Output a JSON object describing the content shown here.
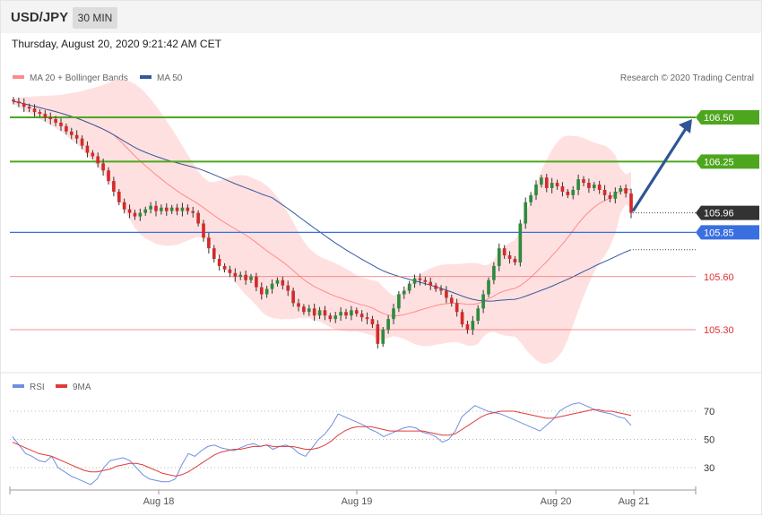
{
  "header": {
    "symbol": "USD/JPY",
    "timeframe": "30 MIN"
  },
  "datetime": "Thursday, August 20, 2020 9:21:42 AM CET",
  "source": "Research © 2020 Trading Central",
  "colors": {
    "bull": "#2e8b3e",
    "bear": "#d42a2a",
    "band": "#ffd6d6",
    "ma20": "#ff8a8a",
    "ma50": "#34589c",
    "resistance": "#4ea61e",
    "pivot": "#3a6fe0",
    "support": "#f06b6b",
    "last": "#333333",
    "arrow": "#2f5597",
    "rsi": "#6f8fe0",
    "rsi_ma": "#e13a3a"
  },
  "chart_data": [
    {
      "type": "candlestick",
      "title": "",
      "legend": [
        {
          "name": "MA 20 + Bollinger Bands",
          "color": "#ff8a8a"
        },
        {
          "name": "MA 50",
          "color": "#34589c"
        }
      ],
      "ylim": [
        105.13,
        106.54
      ],
      "x_ticks": [
        "Aug 18",
        "Aug 19",
        "Aug 20",
        "Aug 21"
      ],
      "closes": [
        106.59,
        106.58,
        106.56,
        106.55,
        106.53,
        106.52,
        106.5,
        106.49,
        106.47,
        106.45,
        106.42,
        106.4,
        106.38,
        106.34,
        106.3,
        106.28,
        106.24,
        106.2,
        106.14,
        106.08,
        106.02,
        105.98,
        105.96,
        105.94,
        105.96,
        105.98,
        106.0,
        105.97,
        105.99,
        105.97,
        105.99,
        105.97,
        105.99,
        105.97,
        105.96,
        105.9,
        105.82,
        105.76,
        105.7,
        105.66,
        105.64,
        105.62,
        105.6,
        105.61,
        105.58,
        105.6,
        105.54,
        105.5,
        105.53,
        105.56,
        105.58,
        105.55,
        105.52,
        105.45,
        105.43,
        105.4,
        105.42,
        105.38,
        105.41,
        105.38,
        105.36,
        105.38,
        105.4,
        105.38,
        105.41,
        105.39,
        105.37,
        105.36,
        105.33,
        105.22,
        105.3,
        105.36,
        105.42,
        105.5,
        105.52,
        105.56,
        105.59,
        105.58,
        105.57,
        105.55,
        105.53,
        105.52,
        105.48,
        105.45,
        105.4,
        105.33,
        105.3,
        105.35,
        105.42,
        105.5,
        105.58,
        105.66,
        105.76,
        105.72,
        105.7,
        105.68,
        105.9,
        106.02,
        106.06,
        106.12,
        106.16,
        106.1,
        106.13,
        106.11,
        106.08,
        106.06,
        106.09,
        106.15,
        106.13,
        106.1,
        106.12,
        106.09,
        106.06,
        106.04,
        106.08,
        106.1,
        106.07,
        105.96
      ],
      "horizontal_levels": [
        {
          "label": "106.50",
          "value": 106.5,
          "kind": "resistance"
        },
        {
          "label": "106.25",
          "value": 106.25,
          "kind": "resistance"
        },
        {
          "label": "105.96",
          "value": 105.96,
          "kind": "last"
        },
        {
          "label": "105.85",
          "value": 105.85,
          "kind": "pivot"
        },
        {
          "label": "105.60",
          "value": 105.6,
          "kind": "support"
        },
        {
          "label": "105.30",
          "value": 105.3,
          "kind": "support"
        }
      ],
      "forecast_arrow": {
        "from": 105.96,
        "to": 106.5
      }
    },
    {
      "type": "line",
      "title": "",
      "legend": [
        {
          "name": "RSI",
          "color": "#6f8fe0"
        },
        {
          "name": "9MA",
          "color": "#e13a3a"
        }
      ],
      "ylim": [
        20,
        80
      ],
      "y_ticks": [
        "70",
        "50",
        "30"
      ],
      "rsi": [
        52,
        46,
        40,
        38,
        35,
        34,
        38,
        30,
        27,
        24,
        22,
        20,
        18,
        22,
        30,
        35,
        36,
        37,
        35,
        30,
        25,
        22,
        21,
        20,
        20,
        22,
        32,
        40,
        38,
        42,
        45,
        46,
        44,
        43,
        42,
        44,
        46,
        47,
        45,
        46,
        43,
        45,
        46,
        44,
        40,
        38,
        44,
        50,
        54,
        60,
        68,
        66,
        64,
        62,
        60,
        57,
        55,
        52,
        54,
        56,
        58,
        59,
        58,
        55,
        54,
        52,
        48,
        50,
        56,
        66,
        70,
        74,
        72,
        70,
        69,
        68,
        66,
        64,
        62,
        60,
        58,
        56,
        60,
        64,
        70,
        73,
        75,
        76,
        74,
        72,
        70,
        69,
        68,
        66,
        65,
        60
      ],
      "rsi_ma": [
        48,
        46,
        44,
        42,
        40,
        39,
        38,
        36,
        34,
        32,
        30,
        28,
        27,
        27,
        28,
        29,
        31,
        32,
        33,
        33,
        32,
        30,
        28,
        26,
        25,
        24,
        25,
        27,
        30,
        33,
        36,
        39,
        41,
        42,
        43,
        43,
        44,
        45,
        45,
        46,
        45,
        45,
        45,
        45,
        44,
        43,
        43,
        44,
        46,
        49,
        53,
        56,
        58,
        59,
        59,
        59,
        58,
        57,
        56,
        56,
        56,
        56,
        56,
        56,
        55,
        54,
        53,
        53,
        54,
        57,
        60,
        63,
        66,
        68,
        69,
        70,
        70,
        70,
        69,
        68,
        67,
        66,
        65,
        65,
        66,
        67,
        68,
        69,
        70,
        71,
        71,
        70,
        70,
        69,
        68,
        67
      ]
    }
  ]
}
